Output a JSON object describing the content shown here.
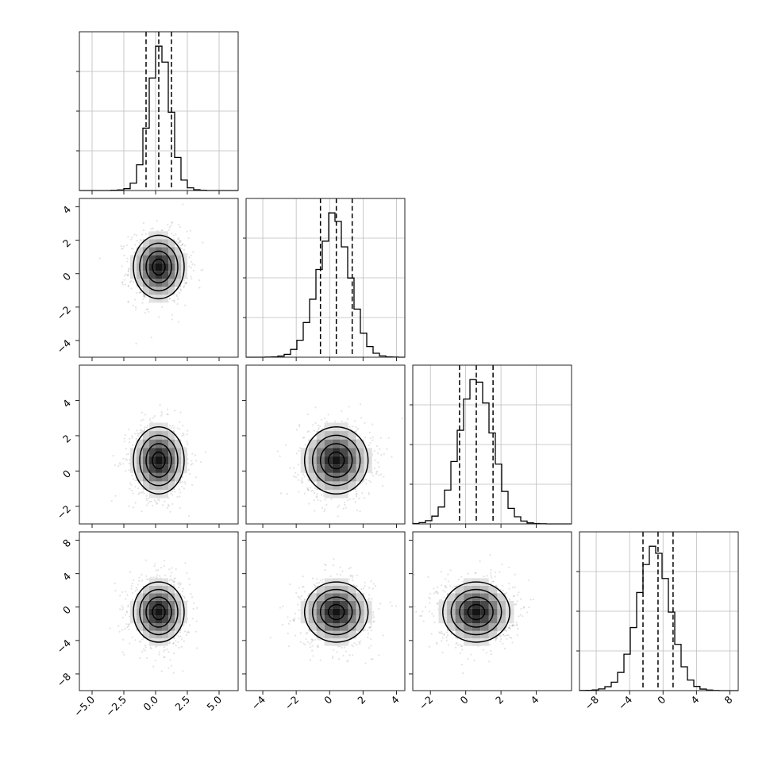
{
  "chart_data": {
    "type": "corner",
    "grid_size": 4,
    "grid": true,
    "colors": {
      "ink": "#000000",
      "grid": "#bdbdbd",
      "scatter": "#808080",
      "frame": "#222222"
    },
    "parameters": [
      {
        "index": 0,
        "mean": 0.25,
        "std": 1.0,
        "range": [
          -6,
          6.5
        ],
        "ticks": [
          -5.0,
          -2.5,
          0.0,
          2.5,
          5.0
        ],
        "tick_labels": [
          "−5.0",
          "−2.5",
          "0.0",
          "2.5",
          "5.0"
        ],
        "quantiles": [
          -0.75,
          0.25,
          1.25
        ]
      },
      {
        "index": 1,
        "mean": 0.4,
        "std": 0.95,
        "range": [
          -5,
          4.5
        ],
        "ticks": [
          -4,
          -2,
          0,
          2,
          4
        ],
        "tick_labels": [
          "−4",
          "−2",
          "0",
          "2",
          "4"
        ],
        "quantiles": [
          -0.55,
          0.4,
          1.35
        ]
      },
      {
        "index": 2,
        "mean": 0.6,
        "std": 0.95,
        "range": [
          -3,
          6
        ],
        "ticks": [
          -2,
          0,
          2,
          4
        ],
        "tick_labels": [
          "−2",
          "0",
          "2",
          "4"
        ],
        "quantiles": [
          -0.35,
          0.6,
          1.55
        ]
      },
      {
        "index": 3,
        "mean": -0.6,
        "std": 1.8,
        "range": [
          -10,
          9
        ],
        "ticks": [
          -8,
          -4,
          0,
          4,
          8
        ],
        "tick_labels": [
          "−8",
          "−4",
          "0",
          "4",
          "8"
        ],
        "quantiles": [
          -2.4,
          -0.6,
          1.2
        ]
      }
    ],
    "histograms": [
      {
        "parameter": 0,
        "bin_edges": [
          -6.0,
          -5.5,
          -5.0,
          -4.5,
          -4.0,
          -3.5,
          -3.0,
          -2.5,
          -2.0,
          -1.5,
          -1.0,
          -0.5,
          0.0,
          0.5,
          1.0,
          1.5,
          2.0,
          2.5,
          3.0,
          3.5,
          4.0,
          4.5,
          5.0,
          5.5,
          6.0,
          6.5
        ],
        "counts": [
          0,
          0,
          0,
          0,
          0,
          2,
          5,
          15,
          60,
          210,
          510,
          920,
          1180,
          1050,
          640,
          270,
          85,
          22,
          6,
          2,
          0,
          0,
          0,
          0,
          0
        ],
        "quantile_lines": [
          -0.75,
          0.25,
          1.25
        ]
      },
      {
        "parameter": 1,
        "bin_edges": [
          -5.0,
          -4.62,
          -4.24,
          -3.86,
          -3.48,
          -3.1,
          -2.72,
          -2.34,
          -1.96,
          -1.58,
          -1.2,
          -0.82,
          -0.44,
          -0.06,
          0.32,
          0.7,
          1.08,
          1.46,
          1.84,
          2.22,
          2.6,
          2.98,
          3.36,
          3.74,
          4.12,
          4.5
        ],
        "counts": [
          0,
          0,
          0,
          1,
          3,
          8,
          20,
          55,
          120,
          245,
          410,
          620,
          820,
          1020,
          960,
          780,
          560,
          340,
          170,
          75,
          28,
          9,
          3,
          1,
          0
        ],
        "quantile_lines": [
          -0.55,
          0.4,
          1.35
        ]
      },
      {
        "parameter": 2,
        "bin_edges": [
          -3.0,
          -2.64,
          -2.28,
          -1.92,
          -1.56,
          -1.2,
          -0.84,
          -0.48,
          -0.12,
          0.24,
          0.6,
          0.96,
          1.32,
          1.68,
          2.04,
          2.4,
          2.76,
          3.12,
          3.48,
          3.84,
          4.2,
          4.56,
          4.92,
          5.28,
          5.64,
          6.0
        ],
        "counts": [
          3,
          10,
          25,
          60,
          130,
          260,
          480,
          720,
          960,
          1110,
          1090,
          930,
          700,
          460,
          250,
          120,
          55,
          22,
          8,
          3,
          1,
          0,
          0,
          0,
          0
        ],
        "quantile_lines": [
          -0.35,
          0.6,
          1.55
        ]
      },
      {
        "parameter": 3,
        "bin_edges": [
          -10.0,
          -9.24,
          -8.48,
          -7.72,
          -6.96,
          -6.2,
          -5.44,
          -4.68,
          -3.92,
          -3.16,
          -2.4,
          -1.64,
          -0.88,
          -0.12,
          0.64,
          1.4,
          2.16,
          2.92,
          3.68,
          4.42,
          5.18,
          5.94,
          6.7,
          7.46,
          8.22,
          9.0
        ],
        "counts": [
          1,
          2,
          5,
          12,
          28,
          60,
          130,
          260,
          450,
          700,
          900,
          1030,
          980,
          800,
          560,
          330,
          170,
          75,
          30,
          11,
          4,
          1,
          0,
          0,
          0
        ],
        "quantile_lines": [
          -2.4,
          -0.6,
          1.2
        ]
      }
    ],
    "joint_panels": [
      {
        "x_param": 0,
        "y_param": 1,
        "sx": 1.0,
        "sy": 0.95,
        "cx": 0.25,
        "cy": 0.4,
        "contour_levels": [
          0.5,
          1.0,
          1.5,
          2.0
        ]
      },
      {
        "x_param": 0,
        "y_param": 2,
        "sx": 1.0,
        "sy": 0.95,
        "cx": 0.25,
        "cy": 0.6,
        "contour_levels": [
          0.5,
          1.0,
          1.5,
          2.0
        ]
      },
      {
        "x_param": 1,
        "y_param": 2,
        "sx": 0.95,
        "sy": 0.95,
        "cx": 0.4,
        "cy": 0.6,
        "contour_levels": [
          0.5,
          1.0,
          1.5,
          2.0
        ]
      },
      {
        "x_param": 0,
        "y_param": 3,
        "sx": 1.0,
        "sy": 1.8,
        "cx": 0.25,
        "cy": -0.6,
        "contour_levels": [
          0.5,
          1.0,
          1.5,
          2.0
        ]
      },
      {
        "x_param": 1,
        "y_param": 3,
        "sx": 0.95,
        "sy": 1.8,
        "cx": 0.4,
        "cy": -0.6,
        "contour_levels": [
          0.5,
          1.0,
          1.5,
          2.0
        ]
      },
      {
        "x_param": 2,
        "y_param": 3,
        "sx": 0.95,
        "sy": 1.8,
        "cx": 0.6,
        "cy": -0.6,
        "contour_levels": [
          0.5,
          1.0,
          1.5,
          2.0
        ]
      }
    ],
    "joint_y_axes": [
      {
        "param": 1,
        "ticks": [
          -4,
          -2,
          0,
          2,
          4
        ],
        "tick_labels": [
          "−4",
          "−2",
          "0",
          "2",
          "4"
        ]
      },
      {
        "param": 2,
        "ticks": [
          -2,
          0,
          2,
          4
        ],
        "tick_labels": [
          "−2",
          "0",
          "2",
          "4"
        ]
      },
      {
        "param": 3,
        "ticks": [
          -8,
          -4,
          0,
          4,
          8
        ],
        "tick_labels": [
          "−8",
          "−4",
          "0",
          "4",
          "8"
        ]
      }
    ]
  }
}
